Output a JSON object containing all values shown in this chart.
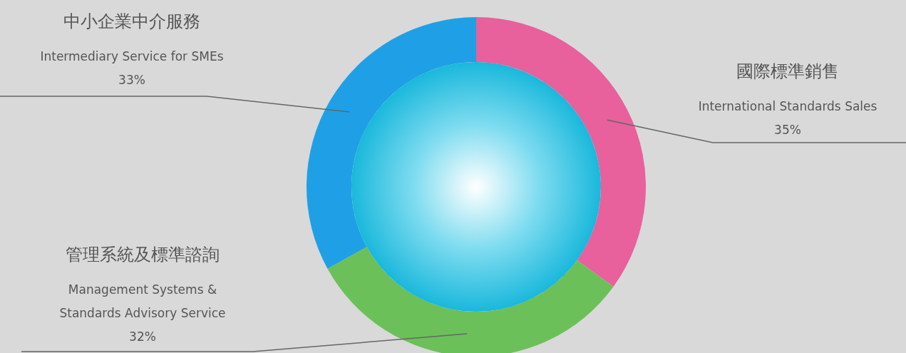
{
  "chart_data": {
    "type": "donut",
    "categories": [
      "國際標準銷售\nInternational Standards Sales",
      "管理系統及標準諮詢\nManagement Systems &\nStandards Advisory Service",
      "中小企業中介服務\nIntermediary Service for SMEs"
    ],
    "values": [
      35,
      32,
      33
    ],
    "colors": [
      "#e8609c",
      "#6cc05a",
      "#1fa0e6"
    ],
    "value_labels": [
      "35%",
      "32%",
      "33%"
    ]
  }
}
